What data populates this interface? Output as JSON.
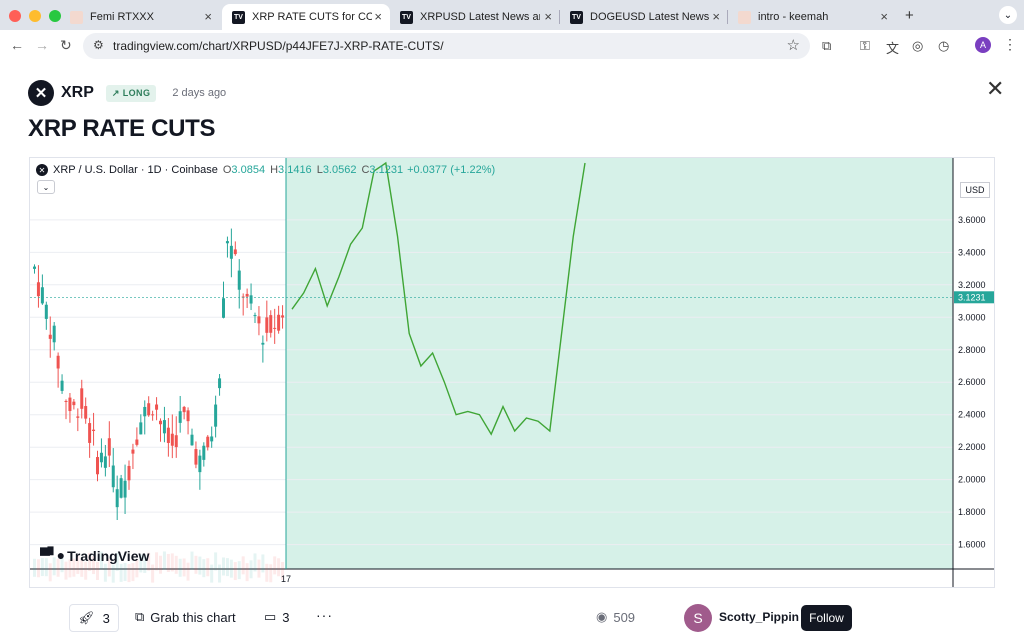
{
  "browser": {
    "tabs": [
      {
        "title": "Femi RTXXX",
        "fav": "",
        "active": false
      },
      {
        "title": "XRP RATE CUTS for COINBASE",
        "fav": "TV",
        "active": true
      },
      {
        "title": "XRPUSD Latest News and Headlines",
        "fav": "TV",
        "active": false
      },
      {
        "title": "DOGEUSD Latest News and Headlines",
        "fav": "TV",
        "active": false
      },
      {
        "title": "intro - keemah",
        "fav": "",
        "active": false
      }
    ],
    "url": "tradingview.com/chart/XRPUSD/p44JFE7J-XRP-RATE-CUTS/",
    "profile_initial": "A"
  },
  "idea": {
    "symbol": "XRP",
    "direction": "LONG",
    "posted": "2 days ago",
    "title": "XRP RATE CUTS"
  },
  "chart_legend": {
    "pair": "XRP / U.S. Dollar · 1D · Coinbase",
    "o_label": "O",
    "o": "3.0854",
    "h_label": "H",
    "h": "3.1416",
    "l_label": "L",
    "l": "3.0562",
    "c_label": "C",
    "c": "3.1231",
    "change": "+0.0377 (+1.22%)",
    "currency": "USD",
    "brand": "TradingView"
  },
  "chart_data": {
    "type": "line",
    "ylim": [
      1.45,
      3.95
    ],
    "y_ticks": [
      "3.6000",
      "3.4000",
      "3.2000",
      "3.0000",
      "2.8000",
      "2.6000",
      "2.4000",
      "2.2000",
      "2.0000",
      "1.8000",
      "1.6000"
    ],
    "last_price": "3.1231",
    "x_tick_label": "17",
    "projection_y": [
      3.05,
      3.15,
      3.3,
      3.07,
      3.25,
      3.45,
      3.55,
      3.9,
      3.95,
      3.5,
      2.9,
      2.7,
      2.78,
      2.6,
      2.4,
      2.42,
      2.4,
      2.28,
      2.45,
      2.3,
      2.38,
      2.36,
      2.3,
      2.9,
      3.5,
      3.95
    ]
  },
  "footer": {
    "boosts": "3",
    "grab_label": "Grab this chart",
    "comments": "3",
    "more": "···",
    "views": "509",
    "author_initial": "S",
    "author": "Scotty_Pippin",
    "follow_label": "Follow"
  },
  "colors": {
    "accent_green": "#26a69a",
    "projection_line": "#3fa535",
    "projection_fill": "#d6f1e8"
  }
}
